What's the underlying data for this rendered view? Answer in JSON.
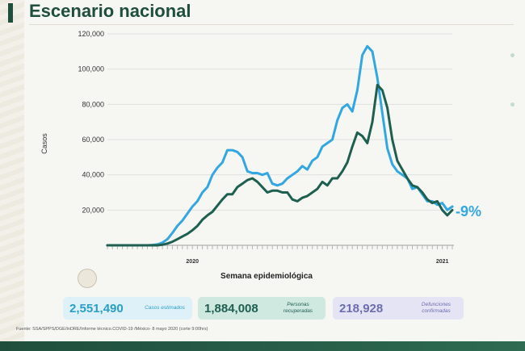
{
  "page": {
    "title": "Escenario nacional",
    "source_note": "Fuente: SSA/SPPS/DGE/InDRE/Informe técnico.COVID-19 /México- 8 mayo 2020 (corte 9:00hrs)",
    "trend_label": "-9%"
  },
  "stats": {
    "estimated_cases": {
      "value": "2,551,490",
      "label": "Casos estimados"
    },
    "recovered": {
      "value": "1,884,008",
      "label": "Personas recuperadas"
    },
    "deaths": {
      "value": "218,928",
      "label": "Defunciones confirmadas"
    }
  },
  "colors": {
    "estimated_series": "#33a7e0",
    "confirmed_series": "#1f5f50",
    "title": "#1f4e3d"
  },
  "chart_data": {
    "type": "line",
    "xlabel": "Semana epidemiológica",
    "ylabel": "Casos",
    "ylim": [
      0,
      120000
    ],
    "yticks": [
      20000,
      40000,
      60000,
      80000,
      100000,
      120000
    ],
    "ytick_labels": [
      "20,000",
      "40,000",
      "60,000",
      "80,000",
      "100,000",
      "120,000"
    ],
    "grid": true,
    "year_labels": [
      {
        "label": "2020",
        "week_index": 17
      },
      {
        "label": "2021",
        "week_index": 67
      }
    ],
    "series": [
      {
        "values": [
          0,
          0,
          0,
          0,
          0,
          0,
          0,
          0,
          0,
          200,
          500,
          1500,
          3500,
          7000,
          11000,
          14000,
          18000,
          22000,
          25000,
          30000,
          33000,
          40000,
          44000,
          47000,
          54000,
          54000,
          53000,
          50000,
          42000,
          41000,
          41000,
          40000,
          41000,
          35000,
          34000,
          35000,
          38000,
          40000,
          42000,
          45000,
          43000,
          48000,
          50000,
          56000,
          58000,
          60000,
          71000,
          78000,
          80000,
          76000,
          88000,
          108000,
          113000,
          110000,
          95000,
          75000,
          55000,
          46000,
          42000,
          40000,
          38000,
          32000,
          33000,
          29000,
          25000,
          25000,
          23000,
          24000,
          20000,
          22000
        ]
      },
      {
        "values": [
          0,
          0,
          0,
          0,
          0,
          0,
          0,
          0,
          0,
          0,
          0,
          300,
          1000,
          2000,
          3500,
          5000,
          6500,
          8500,
          11000,
          14500,
          17000,
          19000,
          22500,
          26000,
          29000,
          29000,
          33000,
          35000,
          37000,
          38000,
          36000,
          33000,
          30000,
          31000,
          31000,
          30000,
          30000,
          26000,
          25000,
          27000,
          28000,
          30000,
          32000,
          36000,
          34000,
          38000,
          38000,
          42000,
          47000,
          56000,
          64000,
          62000,
          58000,
          70000,
          91000,
          88000,
          78000,
          60000,
          48000,
          43000,
          38000,
          34000,
          33000,
          30000,
          26000,
          24000,
          25000,
          20000,
          17000,
          20000
        ]
      }
    ]
  }
}
